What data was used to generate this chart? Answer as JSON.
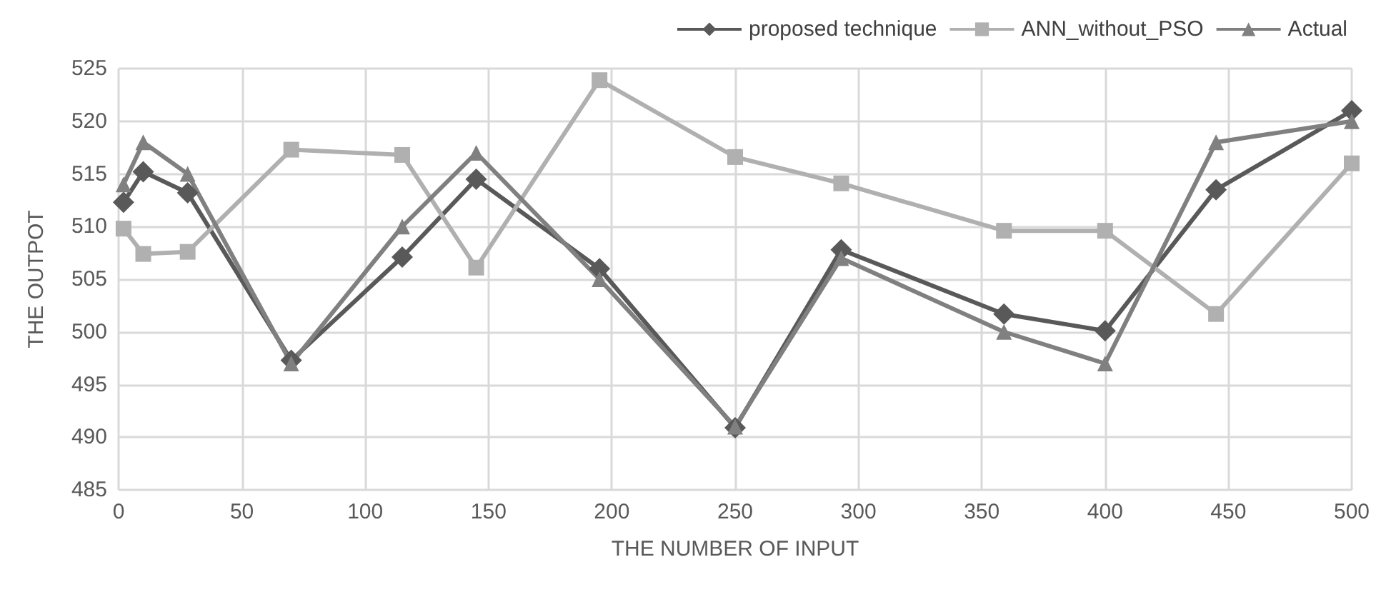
{
  "chart_data": {
    "type": "line",
    "xlabel": "THE NUMBER OF INPUT",
    "ylabel": "THE OUTPOT",
    "x": [
      2,
      10,
      28,
      70,
      115,
      145,
      195,
      250,
      293,
      359,
      400,
      445,
      500
    ],
    "series": [
      {
        "name": "proposed technique",
        "color": "#595959",
        "marker": "diamond",
        "values": [
          512.3,
          515.2,
          513.2,
          497.3,
          507.1,
          514.5,
          506.0,
          490.9,
          507.8,
          501.7,
          500.1,
          513.5,
          521.0
        ]
      },
      {
        "name": "ANN_without_PSO",
        "color": "#b0b0b0",
        "marker": "square",
        "values": [
          509.8,
          507.4,
          507.6,
          517.3,
          516.8,
          506.1,
          523.9,
          516.6,
          514.1,
          509.6,
          509.6,
          501.7,
          516.0
        ]
      },
      {
        "name": "Actual",
        "color": "#808080",
        "marker": "triangle",
        "values": [
          514,
          518,
          515,
          497,
          510,
          517,
          505,
          491,
          507,
          500,
          497,
          518,
          520
        ]
      }
    ],
    "xlim": [
      0,
      500
    ],
    "xticks": [
      0,
      50,
      100,
      150,
      200,
      250,
      300,
      350,
      400,
      450,
      500
    ],
    "ylim": [
      485,
      525
    ],
    "yticks": [
      485,
      490,
      495,
      500,
      505,
      510,
      515,
      520,
      525
    ],
    "grid": true,
    "legend": "top right",
    "line_style": "solid"
  }
}
